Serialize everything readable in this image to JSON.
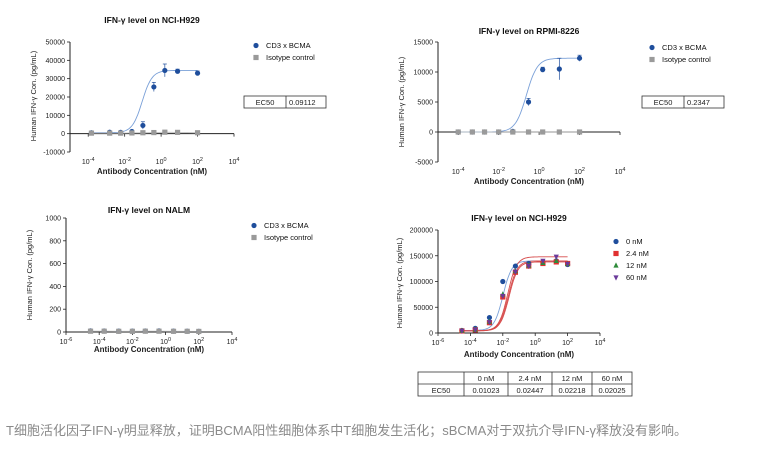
{
  "caption": "T细胞活化因子IFN-γ明显释放，证明BCMA阳性细胞体系中T细胞发生活化；sBCMA对于双抗介导IFN-γ释放没有影响。",
  "colors": {
    "cd3": "#1f4e9c",
    "isotype": "#9a9a9a",
    "fit": "#7aa0d8",
    "fit_red": "#d64b4b",
    "grey_fit": "#bbbbbb"
  },
  "chart_data": [
    {
      "type": "scatter",
      "title": "IFN-γ level on NCI-H929",
      "xlabel": "Antibody Concentration (nM)",
      "ylabel": "Human IFN-γ Con. (pg/mL)",
      "x_scale": "log",
      "xlim": [
        1e-05,
        10000
      ],
      "ylim": [
        -10000,
        50000
      ],
      "yticks": [
        "50000",
        "40000",
        "30000",
        "20000",
        "10000",
        "0",
        "-10000"
      ],
      "xticks": [
        "10-4",
        "10-2",
        "100",
        "102",
        "104"
      ],
      "series": [
        {
          "name": "CD3 x BCMA",
          "marker": "circle",
          "color": "#1f4e9c",
          "x": [
            0.00015,
            0.0015,
            0.006,
            0.025,
            0.1,
            0.4,
            1.6,
            8,
            100
          ],
          "y": [
            500,
            800,
            700,
            1200,
            4500,
            25500,
            34500,
            34000,
            33000
          ],
          "err": [
            0,
            0,
            0,
            0,
            2000,
            2500,
            3500,
            1200,
            1200
          ]
        },
        {
          "name": "Isotype control",
          "marker": "square",
          "color": "#9a9a9a",
          "x": [
            0.00015,
            0.0015,
            0.006,
            0.025,
            0.1,
            0.4,
            1.6,
            8,
            100
          ],
          "y": [
            300,
            300,
            300,
            400,
            500,
            600,
            800,
            700,
            500
          ]
        }
      ],
      "legend": "top-right",
      "ec50_label": "EC50",
      "ec50_value": "0.09112"
    },
    {
      "type": "scatter",
      "title": "IFN-γ level on RPMI-8226",
      "xlabel": "Antibody Concentration (nM)",
      "ylabel": "Human IFN-γ Con. (pg/mL)",
      "x_scale": "log",
      "xlim": [
        1e-05,
        10000
      ],
      "ylim": [
        -5000,
        15000
      ],
      "yticks": [
        "15000",
        "10000",
        "5000",
        "0",
        "-5000"
      ],
      "xticks": [
        "10-4",
        "10-2",
        "100",
        "102",
        "104"
      ],
      "series": [
        {
          "name": "CD3 x BCMA",
          "marker": "circle",
          "color": "#1f4e9c",
          "x": [
            0.0001,
            0.0005,
            0.002,
            0.01,
            0.05,
            0.3,
            1.5,
            10,
            100
          ],
          "y": [
            0,
            0,
            0,
            0,
            100,
            5000,
            10400,
            10500,
            12300
          ],
          "err": [
            0,
            0,
            0,
            0,
            0,
            600,
            400,
            1800,
            500
          ]
        },
        {
          "name": "Isotype control",
          "marker": "square",
          "color": "#9a9a9a",
          "x": [
            0.0001,
            0.0005,
            0.002,
            0.01,
            0.05,
            0.3,
            1.5,
            10,
            100
          ],
          "y": [
            0,
            0,
            0,
            0,
            0,
            0,
            0,
            0,
            0
          ]
        }
      ],
      "legend": "top-right",
      "ec50_label": "EC50",
      "ec50_value": "0.2347"
    },
    {
      "type": "scatter",
      "title": "IFN-γ level on NALM",
      "xlabel": "Antibody Concentration (nM)",
      "ylabel": "Human IFN-γ Con. (pg/mL)",
      "x_scale": "log",
      "xlim": [
        1e-06,
        10000
      ],
      "ylim": [
        0,
        1000
      ],
      "yticks": [
        "1000",
        "800",
        "600",
        "400",
        "200",
        "0"
      ],
      "xticks": [
        "10-6",
        "10-4",
        "10-2",
        "100",
        "102",
        "104"
      ],
      "series": [
        {
          "name": "CD3 x BCMA",
          "marker": "circle",
          "color": "#1f4e9c",
          "x": [
            3e-05,
            0.0002,
            0.0015,
            0.01,
            0.06,
            0.4,
            3,
            20,
            100
          ],
          "y": [
            10,
            9,
            8,
            8,
            9,
            10,
            8,
            7,
            6
          ]
        },
        {
          "name": "Isotype control",
          "marker": "square",
          "color": "#9a9a9a",
          "x": [
            3e-05,
            0.0002,
            0.0015,
            0.01,
            0.06,
            0.4,
            3,
            20,
            100
          ],
          "y": [
            7,
            7,
            6,
            6,
            7,
            7,
            6,
            6,
            5
          ]
        }
      ],
      "legend": "top-right"
    },
    {
      "type": "scatter",
      "title": "IFN-γ level on NCI-H929",
      "xlabel": "Antibody Concentration (nM)",
      "ylabel": "Human IFN-γ Con. (pg/mL)",
      "x_scale": "log",
      "xlim": [
        1e-06,
        10000
      ],
      "ylim": [
        0,
        200000
      ],
      "yticks": [
        "200000",
        "150000",
        "100000",
        "50000",
        "0"
      ],
      "xticks": [
        "10-6",
        "10-4",
        "10-2",
        "100",
        "102",
        "104"
      ],
      "series": [
        {
          "name": "0 nM",
          "marker": "circle",
          "color": "#1f4e9c",
          "x": [
            3e-05,
            0.0002,
            0.0015,
            0.01,
            0.06,
            0.4,
            3,
            20,
            100
          ],
          "y": [
            5000,
            9000,
            30000,
            100000,
            130000,
            135000,
            138000,
            140000,
            133000
          ]
        },
        {
          "name": "2.4 nM",
          "marker": "square",
          "color": "#e03030",
          "x": [
            3e-05,
            0.0002,
            0.0015,
            0.01,
            0.06,
            0.4,
            3,
            20,
            100
          ],
          "y": [
            4000,
            6000,
            20000,
            70000,
            118000,
            130000,
            135000,
            138000,
            135000
          ]
        },
        {
          "name": "12 nM",
          "marker": "triangle-up",
          "color": "#2e8b3a",
          "x": [
            3e-05,
            0.0002,
            0.0015,
            0.01,
            0.06,
            0.4,
            3,
            20,
            100
          ],
          "y": [
            4500,
            6500,
            22000,
            75000,
            120000,
            131000,
            136000,
            140000,
            134000
          ]
        },
        {
          "name": "60 nM",
          "marker": "triangle-down",
          "color": "#6a3a9a",
          "x": [
            3e-05,
            0.0002,
            0.0015,
            0.01,
            0.06,
            0.4,
            3,
            20,
            100
          ],
          "y": [
            4200,
            6200,
            21000,
            72000,
            119000,
            130000,
            140000,
            148000,
            134000
          ]
        }
      ],
      "legend": "top-right",
      "ec50_table": {
        "header": [
          "",
          "0 nM",
          "2.4 nM",
          "12 nM",
          "60 nM"
        ],
        "row": [
          "EC50",
          "0.01023",
          "0.02447",
          "0.02218",
          "0.02025"
        ]
      }
    }
  ]
}
